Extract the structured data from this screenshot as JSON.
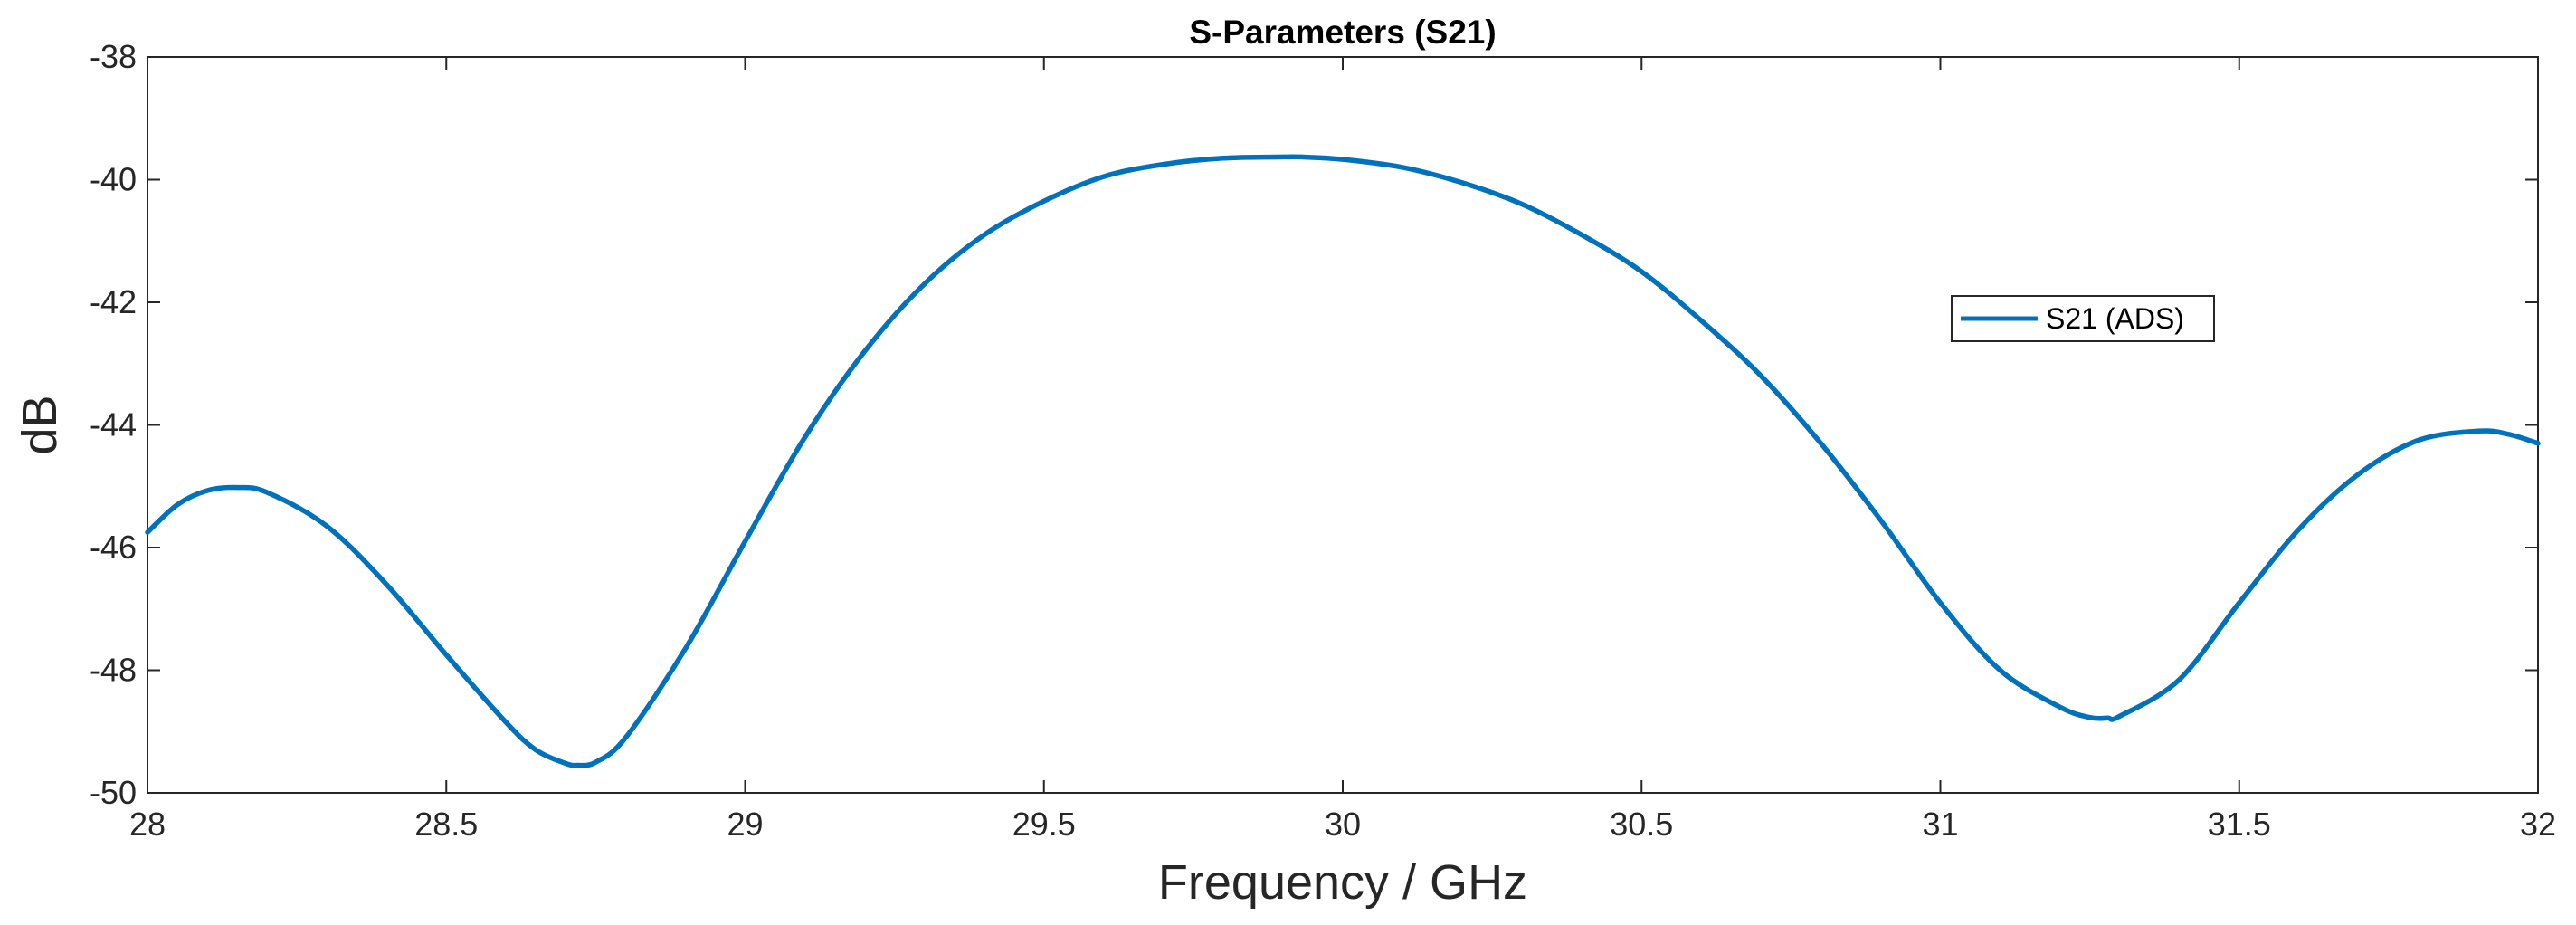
{
  "chart_data": {
    "type": "line",
    "title": "S-Parameters (S21)",
    "xlabel": "Frequency / GHz",
    "ylabel": "dB",
    "xlim": [
      28,
      32
    ],
    "ylim": [
      -50,
      -38
    ],
    "xticks": [
      28,
      28.5,
      29,
      29.5,
      30,
      30.5,
      31,
      31.5,
      32
    ],
    "xtick_labels": [
      "28",
      "28.5",
      "29",
      "29.5",
      "30",
      "30.5",
      "31",
      "31.5",
      "32"
    ],
    "yticks": [
      -50,
      -48,
      -46,
      -44,
      -42,
      -40,
      -38
    ],
    "ytick_labels": [
      "-50",
      "-48",
      "-46",
      "-44",
      "-42",
      "-40",
      "-38"
    ],
    "grid": false,
    "legend_position": "right",
    "series": [
      {
        "name": "S21 (ADS)",
        "color": "#0072BD",
        "x": [
          28.0,
          28.05,
          28.1,
          28.15,
          28.2,
          28.3,
          28.4,
          28.5,
          28.6,
          28.65,
          28.7,
          28.72,
          28.75,
          28.8,
          28.9,
          29.0,
          29.1,
          29.2,
          29.3,
          29.4,
          29.5,
          29.6,
          29.7,
          29.8,
          29.9,
          29.93,
          30.0,
          30.1,
          30.2,
          30.3,
          30.4,
          30.5,
          30.6,
          30.7,
          30.8,
          30.9,
          31.0,
          31.1,
          31.2,
          31.25,
          31.28,
          31.3,
          31.4,
          31.5,
          31.6,
          31.7,
          31.8,
          31.9,
          31.95,
          32.0
        ],
        "y": [
          -45.75,
          -45.3,
          -45.07,
          -45.02,
          -45.1,
          -45.65,
          -46.6,
          -47.75,
          -48.85,
          -49.3,
          -49.52,
          -49.55,
          -49.5,
          -49.1,
          -47.65,
          -45.9,
          -44.2,
          -42.8,
          -41.7,
          -40.9,
          -40.35,
          -39.95,
          -39.75,
          -39.65,
          -39.63,
          -39.63,
          -39.67,
          -39.8,
          -40.05,
          -40.4,
          -40.9,
          -41.5,
          -42.3,
          -43.2,
          -44.3,
          -45.55,
          -46.9,
          -48.0,
          -48.6,
          -48.77,
          -48.78,
          -48.75,
          -48.15,
          -46.9,
          -45.7,
          -44.8,
          -44.25,
          -44.1,
          -44.15,
          -44.3
        ]
      }
    ]
  }
}
